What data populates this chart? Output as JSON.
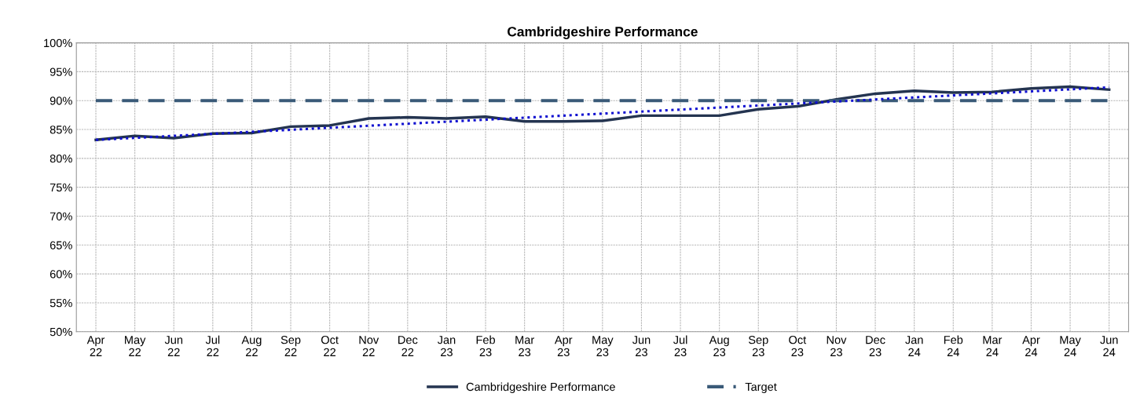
{
  "chart_data": {
    "type": "line",
    "title": "Cambridgeshire Performance",
    "categories": [
      "Apr\n22",
      "May\n22",
      "Jun\n22",
      "Jul\n22",
      "Aug\n22",
      "Sep\n22",
      "Oct\n22",
      "Nov\n22",
      "Dec\n22",
      "Jan\n23",
      "Feb\n23",
      "Mar\n23",
      "Apr\n23",
      "May\n23",
      "Jun\n23",
      "Jul\n23",
      "Aug\n23",
      "Sep\n23",
      "Oct\n23",
      "Nov\n23",
      "Dec\n23",
      "Jan\n24",
      "Feb\n24",
      "Mar\n24",
      "Apr\n24",
      "May\n24",
      "Jun\n24"
    ],
    "series": [
      {
        "name": "Cambridgeshire Performance",
        "color": "#243450",
        "line_style": "solid",
        "values": [
          83.2,
          83.9,
          83.5,
          84.3,
          84.4,
          85.5,
          85.7,
          86.9,
          87.1,
          86.9,
          87.2,
          86.4,
          86.4,
          86.5,
          87.4,
          87.4,
          87.4,
          88.5,
          89.0,
          90.2,
          91.2,
          91.7,
          91.4,
          91.5,
          92.1,
          92.4,
          91.9
        ]
      },
      {
        "name": "Target",
        "color": "#3a5a78",
        "line_style": "dashed",
        "values": [
          90,
          90,
          90,
          90,
          90,
          90,
          90,
          90,
          90,
          90,
          90,
          90,
          90,
          90,
          90,
          90,
          90,
          90,
          90,
          90,
          90,
          90,
          90,
          90,
          90,
          90,
          90
        ]
      },
      {
        "color": "#1010d0",
        "line_style": "dotted",
        "values": [
          83.2,
          83.55,
          83.9,
          84.25,
          84.6,
          84.95,
          85.3,
          85.65,
          86.0,
          86.35,
          86.7,
          87.05,
          87.4,
          87.75,
          88.1,
          88.45,
          88.8,
          89.15,
          89.5,
          89.85,
          90.2,
          90.55,
          90.9,
          91.25,
          91.6,
          91.95,
          92.3
        ]
      }
    ],
    "ylim": [
      50,
      100
    ],
    "yticks": [
      {
        "value": 50,
        "label": "50%"
      },
      {
        "value": 55,
        "label": "55%"
      },
      {
        "value": 60,
        "label": "60%"
      },
      {
        "value": 65,
        "label": "65%"
      },
      {
        "value": 70,
        "label": "70%"
      },
      {
        "value": 75,
        "label": "75%"
      },
      {
        "value": 80,
        "label": "80%"
      },
      {
        "value": 85,
        "label": "85%"
      },
      {
        "value": 90,
        "label": "90%"
      },
      {
        "value": 95,
        "label": "95%"
      },
      {
        "value": 100,
        "label": "100%"
      }
    ],
    "grid": true,
    "legend": "bottom"
  }
}
